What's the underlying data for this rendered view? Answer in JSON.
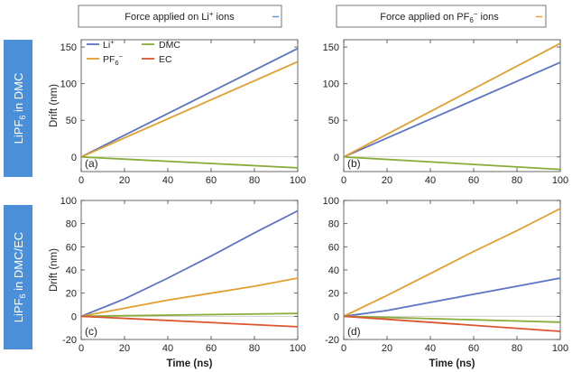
{
  "column_headers": [
    {
      "pre": "Force applied on Li",
      "sup": "+",
      "post": " ions",
      "color": "#5b9bd5"
    },
    {
      "pre": "Force applied on PF",
      "sub": "6",
      "sup": "−",
      "post": " ions",
      "color": "#e8a735"
    }
  ],
  "row_labels": [
    {
      "a": "LiPF",
      "sub": "6",
      "b": " in DMC"
    },
    {
      "a": "LiPF",
      "sub": "6",
      "b": " in DMC/EC"
    }
  ],
  "colors": {
    "Li": "#5b74c4",
    "PF6": "#e0a030",
    "DMC": "#8aac3a",
    "EC": "#d9562e",
    "row_label_bg": "#4a8fd8"
  },
  "legend": [
    {
      "key": "Li",
      "text": "Li",
      "sup": "+"
    },
    {
      "key": "DMC",
      "text": "DMC"
    },
    {
      "key": "PF6",
      "text": "PF",
      "sub": "6",
      "sup": "−"
    },
    {
      "key": "EC",
      "text": "EC"
    }
  ],
  "chart_data": [
    {
      "type": "line",
      "panel_label": "(a)",
      "xlabel": "",
      "ylabel": "Drift (nm)",
      "xlim": [
        0,
        100
      ],
      "ylim": [
        -20,
        160
      ],
      "xticks": [
        0,
        20,
        40,
        60,
        80,
        100
      ],
      "yticks": [
        0,
        50,
        100,
        150
      ],
      "series": [
        {
          "key": "Li",
          "x": [
            0,
            100
          ],
          "y": [
            0,
            148
          ]
        },
        {
          "key": "PF6",
          "x": [
            0,
            100
          ],
          "y": [
            0,
            130
          ]
        },
        {
          "key": "DMC",
          "x": [
            0,
            100
          ],
          "y": [
            0,
            -15
          ]
        }
      ]
    },
    {
      "type": "line",
      "panel_label": "(b)",
      "xlabel": "",
      "ylabel": "",
      "xlim": [
        0,
        100
      ],
      "ylim": [
        -20,
        160
      ],
      "xticks": [
        0,
        20,
        40,
        60,
        80,
        100
      ],
      "yticks": [
        0,
        50,
        100,
        150
      ],
      "series": [
        {
          "key": "Li",
          "x": [
            0,
            100
          ],
          "y": [
            0,
            129
          ]
        },
        {
          "key": "PF6",
          "x": [
            0,
            100
          ],
          "y": [
            0,
            155
          ]
        },
        {
          "key": "DMC",
          "x": [
            0,
            100
          ],
          "y": [
            0,
            -17
          ]
        }
      ]
    },
    {
      "type": "line",
      "panel_label": "(c)",
      "xlabel": "Time (ns)",
      "ylabel": "Drift (nm)",
      "xlim": [
        0,
        100
      ],
      "ylim": [
        -20,
        100
      ],
      "xticks": [
        0,
        20,
        40,
        60,
        80,
        100
      ],
      "yticks": [
        -20,
        0,
        20,
        40,
        60,
        80,
        100
      ],
      "series": [
        {
          "key": "Li",
          "x": [
            0,
            20,
            40,
            60,
            80,
            100
          ],
          "y": [
            0,
            15,
            33,
            52,
            72,
            91
          ]
        },
        {
          "key": "PF6",
          "x": [
            0,
            20,
            40,
            60,
            80,
            100
          ],
          "y": [
            0,
            7,
            14,
            20,
            26,
            33
          ]
        },
        {
          "key": "DMC",
          "x": [
            0,
            100
          ],
          "y": [
            0,
            2.5
          ]
        },
        {
          "key": "EC",
          "x": [
            0,
            100
          ],
          "y": [
            0,
            -9
          ]
        }
      ]
    },
    {
      "type": "line",
      "panel_label": "(d)",
      "xlabel": "Time (ns)",
      "ylabel": "",
      "xlim": [
        0,
        100
      ],
      "ylim": [
        -20,
        100
      ],
      "xticks": [
        0,
        20,
        40,
        60,
        80,
        100
      ],
      "yticks": [
        -20,
        0,
        20,
        40,
        60,
        80,
        100
      ],
      "series": [
        {
          "key": "Li",
          "x": [
            0,
            20,
            40,
            60,
            80,
            100
          ],
          "y": [
            0,
            5,
            12,
            19,
            26,
            33
          ]
        },
        {
          "key": "PF6",
          "x": [
            0,
            20,
            40,
            60,
            80,
            100
          ],
          "y": [
            0,
            18,
            37,
            56,
            74,
            93
          ]
        },
        {
          "key": "DMC",
          "x": [
            0,
            100
          ],
          "y": [
            0,
            -5
          ]
        },
        {
          "key": "EC",
          "x": [
            0,
            100
          ],
          "y": [
            0,
            -13
          ]
        }
      ]
    }
  ]
}
